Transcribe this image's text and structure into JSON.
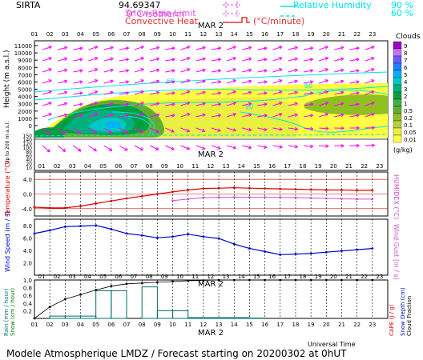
{
  "header": {
    "station": "SIRTA",
    "coord": "94.69347",
    "legend_isotherm": "0°C isotherm",
    "legend_snowrain": "Snow-Rain Limit",
    "legend_convective": "Convective Heat",
    "legend_convective_unit": "(°C/minute)",
    "legend_rh": "Relative Humidity",
    "legend_rh_90": "90 %",
    "legend_rh_60": "60 %"
  },
  "footer": {
    "title": "Modele Atmospherique LMDZ / Forecast starting on 20200302 at 0hUT",
    "xlabel": "Universal Time"
  },
  "colors": {
    "humidity": "#00e5e5",
    "wind_arrow": "#ff00ff",
    "temperature": "#e00000",
    "humidex": "#d050d0",
    "wind_speed": "#0000c8",
    "rain": "#007070",
    "snow": "#008000",
    "cape": "#000000"
  },
  "chart_data": [
    {
      "type": "heatmap",
      "name": "clouds",
      "date_label": "MAR  2",
      "x_ticks": [
        "01",
        "02",
        "03",
        "04",
        "05",
        "06",
        "07",
        "08",
        "09",
        "10",
        "11",
        "12",
        "13",
        "14",
        "15",
        "16",
        "17",
        "18",
        "19",
        "20",
        "21",
        "22",
        "23"
      ],
      "ylabel_main": "Height  (m a.s.l.)",
      "ylabel_low": "Up to 200 m a.s.l.",
      "y_ticks": [
        "11000",
        "10000",
        "9000",
        "8000",
        "7000",
        "6000",
        "5000",
        "4000",
        "3000",
        "2000",
        "1000",
        "0"
      ],
      "y_ticks_low": [
        "150",
        "140",
        "120",
        "100",
        "80",
        "60",
        "40",
        "20",
        "10"
      ],
      "ylim": [
        0,
        11500
      ],
      "contour_labels": [
        "60",
        "90"
      ],
      "colorbar_title": "Clouds",
      "colorbar_unit": "(g/kg)",
      "colorbar_labels": [
        "9",
        "8",
        "7",
        "6",
        "5",
        "4",
        "3",
        "2",
        "1",
        "0.5",
        "0.2",
        "0.1",
        "0.05",
        "0.01"
      ],
      "colorbar_colors": [
        "#a000c8",
        "#d070f0",
        "#6060ff",
        "#2080ff",
        "#00b0ff",
        "#00c8c8",
        "#00b080",
        "#00a040",
        "#40b040",
        "#60b030",
        "#90c020",
        "#b8d040",
        "#e8f040",
        "#ffff40"
      ]
    },
    {
      "type": "line",
      "name": "temperature",
      "ylabel": "Temperature (°C)",
      "ylabel_right": "HUMIDEX (°C)",
      "y_ticks": [
        "4.0",
        "0.0",
        "-4.0"
      ],
      "ylim": [
        -6,
        6
      ],
      "x": [
        1,
        2,
        3,
        4,
        5,
        6,
        7,
        8,
        9,
        10,
        11,
        12,
        13,
        14,
        15,
        16,
        17,
        18,
        19,
        20,
        21,
        22,
        23
      ],
      "series": [
        {
          "values": [
            -3.6,
            -3.8,
            -3.8,
            -3.3,
            -2.6,
            -1.9,
            -1.2,
            -0.6,
            0.0,
            0.6,
            1.1,
            1.5,
            1.6,
            1.7,
            1.6,
            1.5,
            1.4,
            1.3,
            1.2,
            1.1,
            1.1,
            1.0,
            1.0
          ]
        },
        {
          "values": [
            null,
            null,
            null,
            null,
            null,
            null,
            null,
            null,
            null,
            -1.8,
            -1.4,
            -1.0,
            -0.9,
            -0.9,
            -0.9,
            -0.9,
            -0.9,
            -1.0,
            -1.1,
            -1.2,
            -1.3,
            -1.4,
            -1.4
          ]
        }
      ]
    },
    {
      "type": "line",
      "name": "wind",
      "ylabel": "Wind Speed (m / s)",
      "ylabel_right": "Wind Gust (m / s)",
      "y_ticks": [
        "8.0",
        "6.0",
        "4.0",
        "2.0"
      ],
      "ylim": [
        0,
        9
      ],
      "x": [
        1,
        2,
        3,
        4,
        5,
        6,
        7,
        8,
        9,
        10,
        11,
        12,
        13,
        14,
        15,
        16,
        17,
        18,
        19,
        20,
        21,
        22,
        23
      ],
      "series": [
        {
          "values": [
            6.7,
            7.2,
            7.8,
            7.9,
            8.0,
            7.4,
            6.7,
            6.4,
            6.0,
            6.2,
            6.6,
            6.2,
            5.9,
            5.0,
            4.3,
            3.8,
            3.3,
            3.4,
            3.5,
            3.7,
            3.9,
            4.1,
            4.3
          ]
        }
      ]
    },
    {
      "type": "bar",
      "name": "precipitation",
      "date_label": "MAR  2",
      "ylabel": "Rain (mm / hour)",
      "ylabel2": "Snow (cm / hour)",
      "ylabel_right": "CAPE (J / g)",
      "ylabel_right2": "Snow Depth (cm)",
      "ylabel_right3": "Cloud Fraction",
      "y_ticks": [
        "1.0",
        "0.8",
        "0.6",
        "0.4",
        "0.2"
      ],
      "ylim": [
        0,
        1
      ],
      "x": [
        1,
        2,
        3,
        4,
        5,
        6,
        7,
        8,
        9,
        10,
        11,
        12,
        13,
        14,
        15,
        16,
        17,
        18,
        19,
        20,
        21,
        22,
        23
      ],
      "rain": [
        0.0,
        0.06,
        0.06,
        0.06,
        0.72,
        0.72,
        0.0,
        0.82,
        0.2,
        0.2,
        0.02,
        0.02,
        0.02,
        0.02,
        0.01,
        0.0,
        0.0,
        0.0,
        0.0,
        0.0,
        0.0,
        0.0,
        0.0
      ],
      "cape": [
        0.0,
        0.3,
        0.5,
        0.62,
        0.74,
        0.84,
        0.9,
        0.92,
        0.94,
        0.96,
        0.98,
        0.99,
        1.0,
        1.0,
        1.0,
        1.0,
        1.0,
        1.0,
        1.0,
        1.0,
        1.0,
        1.0,
        1.0
      ]
    }
  ]
}
